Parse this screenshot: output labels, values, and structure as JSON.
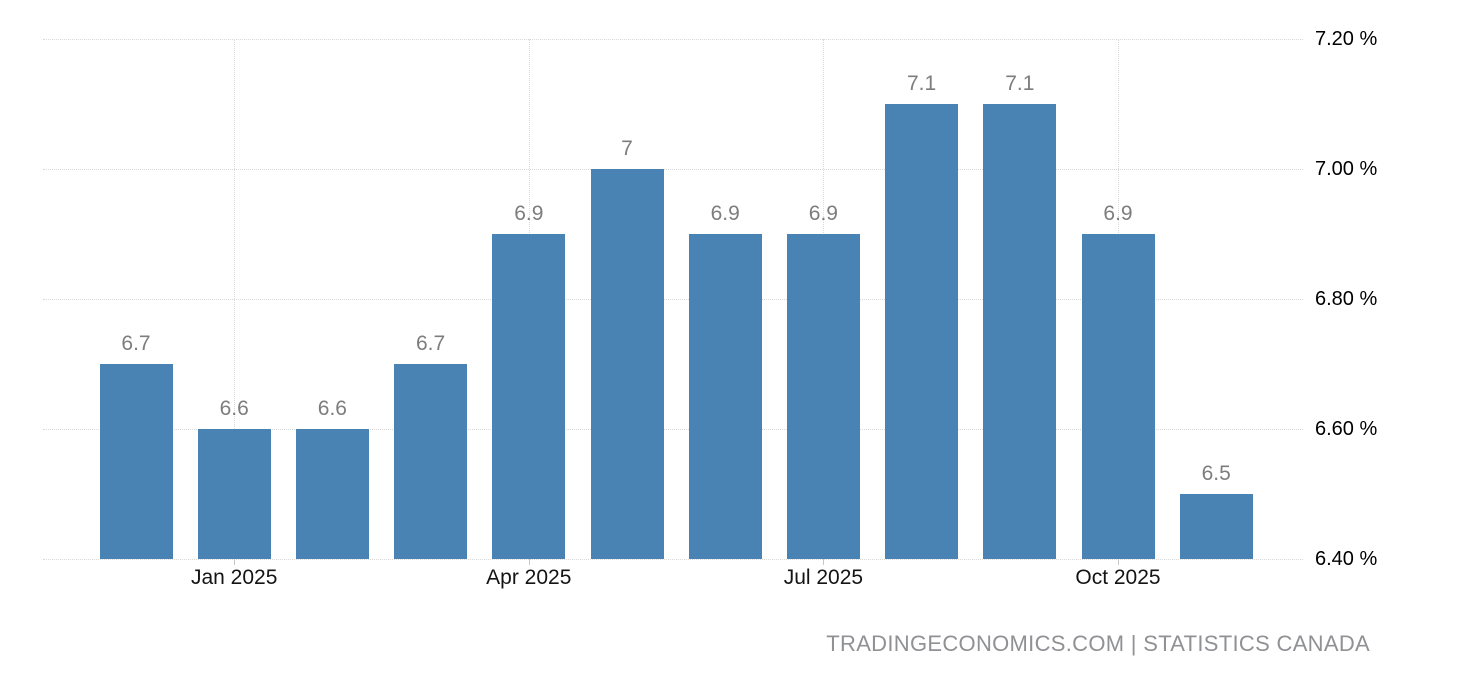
{
  "chart": {
    "attribution": "TRADINGECONOMICS.COM | STATISTICS CANADA"
  },
  "chart_data": {
    "type": "bar",
    "title": "",
    "xlabel": "",
    "ylabel": "",
    "values": [
      6.7,
      6.6,
      6.6,
      6.7,
      6.9,
      7,
      6.9,
      6.9,
      7.1,
      7.1,
      6.9,
      6.5
    ],
    "bar_labels": [
      "6.7",
      "6.6",
      "6.6",
      "6.7",
      "6.9",
      "7",
      "6.9",
      "6.9",
      "7.1",
      "7.1",
      "6.9",
      "6.5"
    ],
    "x_ticks": [
      {
        "label": "Jan 2025",
        "bar_index": 1
      },
      {
        "label": "Apr 2025",
        "bar_index": 4
      },
      {
        "label": "Jul 2025",
        "bar_index": 7
      },
      {
        "label": "Oct 2025",
        "bar_index": 10
      }
    ],
    "y_ticks": [
      {
        "label": "7.20 %",
        "value": 7.2
      },
      {
        "label": "7.00 %",
        "value": 7.0
      },
      {
        "label": "6.80 %",
        "value": 6.8
      },
      {
        "label": "6.60 %",
        "value": 6.6
      },
      {
        "label": "6.40 %",
        "value": 6.4
      }
    ],
    "ylim": [
      6.4,
      7.2
    ],
    "grid": "dotted, horizontal at every y tick and vertical at every x tick",
    "legend": "none",
    "y_axis_side": "right",
    "colors": {
      "bar": "#4883b4",
      "bar_label": "#7d7d7d",
      "x_tick_label": "#141414",
      "y_tick_label": "#000000",
      "gridline": "#d9d9d9",
      "tick_mark": "#c6c6c6",
      "attribution": "#909194",
      "background": "#ffffff"
    }
  }
}
